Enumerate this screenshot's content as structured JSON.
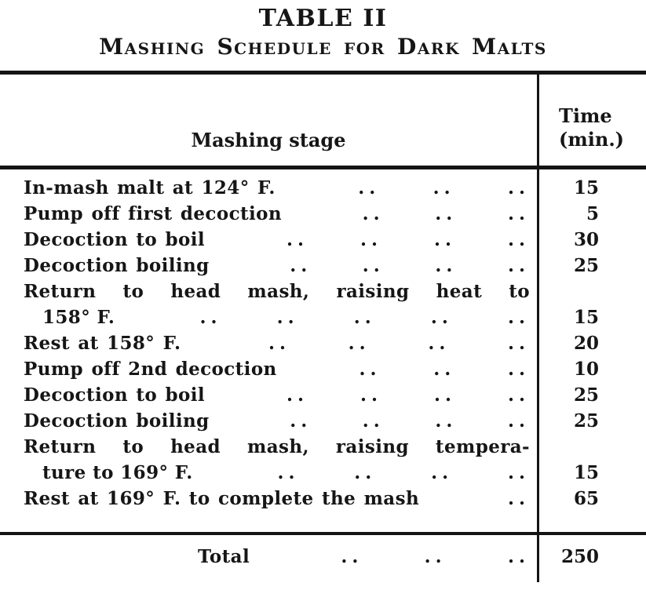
{
  "page": {
    "title": "TABLE II",
    "subtitle": "Mashing Schedule for Dark Malts"
  },
  "table": {
    "leader_glyph": "..",
    "header": {
      "stage_label": "Mashing stage",
      "time_label_line1": "Time",
      "time_label_line2": "(min.)"
    },
    "rows": [
      {
        "stage": "In-mash malt at 124° F.",
        "dots": 3,
        "time": "15"
      },
      {
        "stage": "Pump off first decoction",
        "dots": 3,
        "time": "5"
      },
      {
        "stage": "Decoction to boil",
        "dots": 4,
        "time": "30"
      },
      {
        "stage": "Decoction boiling",
        "dots": 4,
        "time": "25"
      },
      {
        "stage_line1": "Return to head mash, raising heat to",
        "stage_line2": "158° F.",
        "dots": 5,
        "time": "15"
      },
      {
        "stage": "Rest at 158° F.",
        "dots": 4,
        "time": "20"
      },
      {
        "stage": "Pump off 2nd decoction",
        "dots": 3,
        "time": "10"
      },
      {
        "stage": "Decoction to boil",
        "dots": 4,
        "time": "25"
      },
      {
        "stage": "Decoction boiling",
        "dots": 4,
        "time": "25"
      },
      {
        "stage_line1": "Return to head mash, raising tempera-",
        "stage_line2": "ture to 169° F.",
        "dots": 4,
        "time": "15"
      },
      {
        "stage": "Rest at 169° F. to complete the mash",
        "dots": 1,
        "time": "65"
      }
    ],
    "total": {
      "label": "Total",
      "dots": 3,
      "time": "250"
    }
  },
  "colors": {
    "ink": "#161616",
    "paper": "#ffffff"
  }
}
